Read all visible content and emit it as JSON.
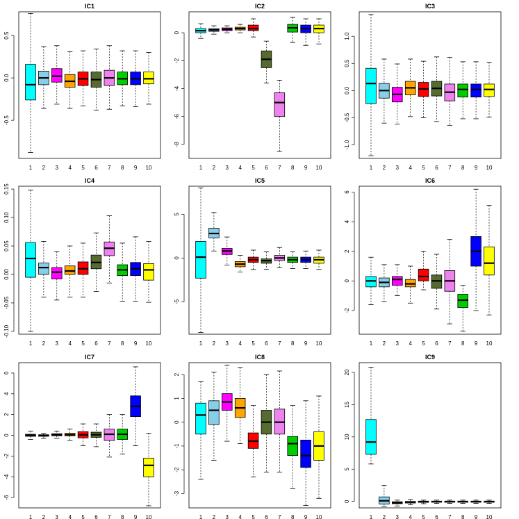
{
  "chart_data": [
    {
      "type": "boxplot",
      "title": "IC1",
      "categories": [
        "1",
        "2",
        "3",
        "4",
        "5",
        "6",
        "7",
        "8",
        "9",
        "10"
      ],
      "colors": [
        "#00FFFF",
        "#87CEEB",
        "#FF00FF",
        "#FFA500",
        "#FF0000",
        "#556B2F",
        "#EE82EE",
        "#00CD00",
        "#0000FF",
        "#FFFF00"
      ],
      "ylim": [
        -0.95,
        0.78
      ],
      "yticks": [
        -0.5,
        0.0,
        0.5
      ],
      "ytick_labels": [
        "-0.5",
        "0.0",
        "0.5"
      ],
      "boxes": [
        {
          "min": -0.88,
          "q1": -0.26,
          "median": -0.08,
          "q3": 0.16,
          "max": 0.76
        },
        {
          "min": -0.36,
          "q1": -0.08,
          "median": 0.0,
          "q3": 0.08,
          "max": 0.37
        },
        {
          "min": -0.31,
          "q1": -0.05,
          "median": 0.02,
          "q3": 0.11,
          "max": 0.38
        },
        {
          "min": -0.36,
          "q1": -0.11,
          "median": -0.04,
          "q3": 0.04,
          "max": 0.31
        },
        {
          "min": -0.33,
          "q1": -0.09,
          "median": -0.01,
          "q3": 0.07,
          "max": 0.32
        },
        {
          "min": -0.38,
          "q1": -0.11,
          "median": -0.02,
          "q3": 0.07,
          "max": 0.34
        },
        {
          "min": -0.37,
          "q1": -0.09,
          "median": 0.0,
          "q3": 0.09,
          "max": 0.38
        },
        {
          "min": -0.33,
          "q1": -0.08,
          "median": -0.01,
          "q3": 0.07,
          "max": 0.32
        },
        {
          "min": -0.34,
          "q1": -0.08,
          "median": -0.01,
          "q3": 0.07,
          "max": 0.32
        },
        {
          "min": -0.31,
          "q1": -0.07,
          "median": -0.01,
          "q3": 0.07,
          "max": 0.3
        }
      ]
    },
    {
      "type": "boxplot",
      "title": "IC2",
      "categories": [
        "1",
        "2",
        "3",
        "4",
        "5",
        "6",
        "7",
        "8",
        "9",
        "10"
      ],
      "colors": [
        "#00FFFF",
        "#87CEEB",
        "#FF00FF",
        "#FFA500",
        "#FF0000",
        "#556B2F",
        "#EE82EE",
        "#00CD00",
        "#0000FF",
        "#FFFF00"
      ],
      "ylim": [
        -9.0,
        1.5
      ],
      "yticks": [
        -8,
        -6,
        -4,
        -2,
        0
      ],
      "ytick_labels": [
        "-8",
        "-6",
        "-4",
        "-2",
        "0"
      ],
      "boxes": [
        {
          "min": -0.4,
          "q1": 0.0,
          "median": 0.15,
          "q3": 0.3,
          "max": 0.65
        },
        {
          "min": -0.1,
          "q1": 0.1,
          "median": 0.2,
          "q3": 0.3,
          "max": 0.5
        },
        {
          "min": 0.0,
          "q1": 0.15,
          "median": 0.25,
          "q3": 0.35,
          "max": 0.5
        },
        {
          "min": 0.0,
          "q1": 0.2,
          "median": 0.3,
          "q3": 0.4,
          "max": 0.6
        },
        {
          "min": -0.3,
          "q1": 0.15,
          "median": 0.3,
          "q3": 0.55,
          "max": 1.0
        },
        {
          "min": -3.6,
          "q1": -2.5,
          "median": -1.9,
          "q3": -1.3,
          "max": -0.6
        },
        {
          "min": -8.5,
          "q1": -6.0,
          "median": -5.0,
          "q3": -4.3,
          "max": -3.4
        },
        {
          "min": -0.7,
          "q1": 0.05,
          "median": 0.35,
          "q3": 0.6,
          "max": 1.1
        },
        {
          "min": -0.9,
          "q1": 0.0,
          "median": 0.3,
          "q3": 0.55,
          "max": 1.0
        },
        {
          "min": -0.8,
          "q1": 0.0,
          "median": 0.3,
          "q3": 0.55,
          "max": 1.0
        }
      ]
    },
    {
      "type": "boxplot",
      "title": "IC3",
      "categories": [
        "1",
        "2",
        "3",
        "4",
        "5",
        "6",
        "7",
        "8",
        "9",
        "10"
      ],
      "colors": [
        "#00FFFF",
        "#87CEEB",
        "#FF00FF",
        "#FFA500",
        "#FF0000",
        "#556B2F",
        "#EE82EE",
        "#00CD00",
        "#0000FF",
        "#FFFF00"
      ],
      "ylim": [
        -1.25,
        1.45
      ],
      "yticks": [
        -1.0,
        -0.5,
        0.0,
        0.5,
        1.0
      ],
      "ytick_labels": [
        "-1.0",
        "-0.5",
        "0.0",
        "0.5",
        "1.0"
      ],
      "boxes": [
        {
          "min": -1.2,
          "q1": -0.24,
          "median": 0.13,
          "q3": 0.41,
          "max": 1.4
        },
        {
          "min": -0.6,
          "q1": -0.14,
          "median": 0.0,
          "q3": 0.13,
          "max": 0.58
        },
        {
          "min": -0.62,
          "q1": -0.21,
          "median": -0.07,
          "q3": 0.06,
          "max": 0.49
        },
        {
          "min": -0.48,
          "q1": -0.08,
          "median": 0.05,
          "q3": 0.17,
          "max": 0.58
        },
        {
          "min": -0.5,
          "q1": -0.11,
          "median": 0.03,
          "q3": 0.15,
          "max": 0.54
        },
        {
          "min": -0.57,
          "q1": -0.1,
          "median": 0.04,
          "q3": 0.17,
          "max": 0.62
        },
        {
          "min": -0.64,
          "q1": -0.19,
          "median": -0.03,
          "q3": 0.12,
          "max": 0.61
        },
        {
          "min": -0.52,
          "q1": -0.12,
          "median": 0.02,
          "q3": 0.12,
          "max": 0.53
        },
        {
          "min": -0.52,
          "q1": -0.12,
          "median": 0.02,
          "q3": 0.12,
          "max": 0.53
        },
        {
          "min": -0.49,
          "q1": -0.11,
          "median": 0.02,
          "q3": 0.12,
          "max": 0.52
        }
      ]
    },
    {
      "type": "boxplot",
      "title": "IC4",
      "categories": [
        "1",
        "2",
        "3",
        "4",
        "5",
        "6",
        "7",
        "8",
        "9",
        "10"
      ],
      "colors": [
        "#00FFFF",
        "#87CEEB",
        "#FF00FF",
        "#FFA500",
        "#FF0000",
        "#556B2F",
        "#EE82EE",
        "#00CD00",
        "#0000FF",
        "#FFFF00"
      ],
      "ylim": [
        -0.105,
        0.155
      ],
      "yticks": [
        -0.1,
        -0.05,
        0.0,
        0.05,
        0.1,
        0.15
      ],
      "ytick_labels": [
        "-0.10",
        "-0.05",
        "0.00",
        "0.05",
        "0.10",
        "0.15"
      ],
      "boxes": [
        {
          "min": -0.1,
          "q1": -0.005,
          "median": 0.028,
          "q3": 0.056,
          "max": 0.148
        },
        {
          "min": -0.04,
          "q1": 0.0,
          "median": 0.012,
          "q3": 0.02,
          "max": 0.058
        },
        {
          "min": -0.045,
          "q1": -0.008,
          "median": 0.004,
          "q3": 0.012,
          "max": 0.04
        },
        {
          "min": -0.04,
          "q1": 0.0,
          "median": 0.006,
          "q3": 0.015,
          "max": 0.05
        },
        {
          "min": -0.04,
          "q1": 0.0,
          "median": 0.01,
          "q3": 0.022,
          "max": 0.055
        },
        {
          "min": -0.03,
          "q1": 0.01,
          "median": 0.021,
          "q3": 0.034,
          "max": 0.073
        },
        {
          "min": -0.015,
          "q1": 0.033,
          "median": 0.046,
          "q3": 0.057,
          "max": 0.103
        },
        {
          "min": -0.047,
          "q1": -0.002,
          "median": 0.008,
          "q3": 0.017,
          "max": 0.055
        },
        {
          "min": -0.047,
          "q1": -0.002,
          "median": 0.01,
          "q3": 0.021,
          "max": 0.066
        },
        {
          "min": -0.049,
          "q1": -0.01,
          "median": 0.008,
          "q3": 0.019,
          "max": 0.058
        }
      ]
    },
    {
      "type": "boxplot",
      "title": "IC5",
      "categories": [
        "1",
        "2",
        "3",
        "4",
        "5",
        "6",
        "7",
        "8",
        "9",
        "10"
      ],
      "colors": [
        "#00FFFF",
        "#87CEEB",
        "#FF00FF",
        "#FFA500",
        "#FF0000",
        "#556B2F",
        "#EE82EE",
        "#00CD00",
        "#0000FF",
        "#FFFF00"
      ],
      "ylim": [
        -8.7,
        8.2
      ],
      "yticks": [
        -5,
        0,
        5
      ],
      "ytick_labels": [
        "-5",
        "0",
        "5"
      ],
      "boxes": [
        {
          "min": -8.5,
          "q1": -2.3,
          "median": 0.1,
          "q3": 1.9,
          "max": 8.0
        },
        {
          "min": 0.8,
          "q1": 2.3,
          "median": 2.8,
          "q3": 3.4,
          "max": 5.2
        },
        {
          "min": -0.8,
          "q1": 0.4,
          "median": 0.8,
          "q3": 1.1,
          "max": 2.4
        },
        {
          "min": -1.6,
          "q1": -1.0,
          "median": -0.7,
          "q3": -0.4,
          "max": 0.3
        },
        {
          "min": -1.3,
          "q1": -0.5,
          "median": -0.2,
          "q3": 0.1,
          "max": 0.9
        },
        {
          "min": -1.3,
          "q1": -0.6,
          "median": -0.3,
          "q3": -0.1,
          "max": 0.7
        },
        {
          "min": -1.1,
          "q1": -0.3,
          "median": 0.0,
          "q3": 0.3,
          "max": 1.2
        },
        {
          "min": -1.2,
          "q1": -0.5,
          "median": -0.2,
          "q3": 0.1,
          "max": 0.7
        },
        {
          "min": -1.2,
          "q1": -0.5,
          "median": -0.2,
          "q3": 0.1,
          "max": 0.8
        },
        {
          "min": -1.3,
          "q1": -0.6,
          "median": -0.2,
          "q3": 0.1,
          "max": 0.9
        }
      ]
    },
    {
      "type": "boxplot",
      "title": "IC6",
      "categories": [
        "1",
        "2",
        "3",
        "4",
        "5",
        "6",
        "7",
        "8",
        "9",
        "10"
      ],
      "colors": [
        "#00FFFF",
        "#87CEEB",
        "#FF00FF",
        "#FFA500",
        "#FF0000",
        "#556B2F",
        "#EE82EE",
        "#00CD00",
        "#0000FF",
        "#FFFF00"
      ],
      "ylim": [
        -3.6,
        6.4
      ],
      "yticks": [
        -2,
        0,
        2,
        4,
        6
      ],
      "ytick_labels": [
        "-2",
        "0",
        "2",
        "4",
        "6"
      ],
      "boxes": [
        {
          "min": -1.6,
          "q1": -0.4,
          "median": 0.0,
          "q3": 0.3,
          "max": 1.6
        },
        {
          "min": -1.4,
          "q1": -0.4,
          "median": -0.1,
          "q3": 0.2,
          "max": 1.1
        },
        {
          "min": -1.0,
          "q1": -0.3,
          "median": 0.1,
          "q3": 0.3,
          "max": 1.1
        },
        {
          "min": -1.5,
          "q1": -0.4,
          "median": -0.2,
          "q3": 0.1,
          "max": 1.0
        },
        {
          "min": -0.6,
          "q1": 0.0,
          "median": 0.3,
          "q3": 0.8,
          "max": 2.0
        },
        {
          "min": -1.9,
          "q1": -0.5,
          "median": 0.0,
          "q3": 0.4,
          "max": 1.8
        },
        {
          "min": -2.9,
          "q1": -0.7,
          "median": 0.0,
          "q3": 0.7,
          "max": 2.8
        },
        {
          "min": -3.4,
          "q1": -1.8,
          "median": -1.3,
          "q3": -0.9,
          "max": -0.3
        },
        {
          "min": -2.0,
          "q1": 1.0,
          "median": 2.0,
          "q3": 3.0,
          "max": 6.2
        },
        {
          "min": -2.3,
          "q1": 0.4,
          "median": 1.2,
          "q3": 2.3,
          "max": 5.1
        }
      ]
    },
    {
      "type": "boxplot",
      "title": "IC7",
      "categories": [
        "1",
        "2",
        "3",
        "4",
        "5",
        "6",
        "7",
        "8",
        "9",
        "10"
      ],
      "colors": [
        "#00FFFF",
        "#87CEEB",
        "#FF00FF",
        "#FFA500",
        "#FF0000",
        "#556B2F",
        "#EE82EE",
        "#00CD00",
        "#0000FF",
        "#FFFF00"
      ],
      "ylim": [
        -7.0,
        7.0
      ],
      "yticks": [
        -6,
        -4,
        -2,
        0,
        2,
        4,
        6
      ],
      "ytick_labels": [
        "-6",
        "-4",
        "-2",
        "0",
        "2",
        "4",
        "6"
      ],
      "boxes": [
        {
          "min": -0.4,
          "q1": -0.1,
          "median": 0.0,
          "q3": 0.1,
          "max": 0.4
        },
        {
          "min": -0.3,
          "q1": -0.1,
          "median": 0.0,
          "q3": 0.05,
          "max": 0.2
        },
        {
          "min": -0.3,
          "q1": -0.05,
          "median": 0.05,
          "q3": 0.15,
          "max": 0.4
        },
        {
          "min": -0.5,
          "q1": -0.05,
          "median": 0.05,
          "q3": 0.2,
          "max": 0.6
        },
        {
          "min": -1.0,
          "q1": -0.25,
          "median": 0.05,
          "q3": 0.35,
          "max": 1.1
        },
        {
          "min": -1.1,
          "q1": -0.2,
          "median": 0.05,
          "q3": 0.3,
          "max": 1.1
        },
        {
          "min": -2.1,
          "q1": -0.5,
          "median": 0.1,
          "q3": 0.6,
          "max": 2.0
        },
        {
          "min": -1.8,
          "q1": -0.4,
          "median": 0.1,
          "q3": 0.6,
          "max": 2.0
        },
        {
          "min": -1.0,
          "q1": 1.8,
          "median": 2.8,
          "q3": 3.8,
          "max": 6.6
        },
        {
          "min": -6.8,
          "q1": -4.0,
          "median": -2.9,
          "q3": -2.2,
          "max": 0.2
        }
      ]
    },
    {
      "type": "boxplot",
      "title": "IC8",
      "categories": [
        "1",
        "2",
        "3",
        "4",
        "5",
        "6",
        "7",
        "8",
        "9",
        "10"
      ],
      "colors": [
        "#00FFFF",
        "#87CEEB",
        "#FF00FF",
        "#FFA500",
        "#FF0000",
        "#556B2F",
        "#EE82EE",
        "#00CD00",
        "#0000FF",
        "#FFFF00"
      ],
      "ylim": [
        -3.6,
        2.5
      ],
      "yticks": [
        -3,
        -2,
        -1,
        0,
        1,
        2
      ],
      "ytick_labels": [
        "-3",
        "-2",
        "-1",
        "0",
        "1",
        "2"
      ],
      "boxes": [
        {
          "min": -2.4,
          "q1": -0.5,
          "median": 0.3,
          "q3": 0.8,
          "max": 1.7
        },
        {
          "min": -1.6,
          "q1": -0.1,
          "median": 0.5,
          "q3": 0.9,
          "max": 2.1
        },
        {
          "min": -0.8,
          "q1": 0.5,
          "median": 0.85,
          "q3": 1.2,
          "max": 2.4
        },
        {
          "min": -0.9,
          "q1": 0.2,
          "median": 0.6,
          "q3": 1.0,
          "max": 2.3
        },
        {
          "min": -2.3,
          "q1": -1.1,
          "median": -0.8,
          "q3": -0.45,
          "max": 0.7
        },
        {
          "min": -2.1,
          "q1": -0.5,
          "median": 0.0,
          "q3": 0.5,
          "max": 2.0
        },
        {
          "min": -2.1,
          "q1": -0.5,
          "median": 0.0,
          "q3": 0.55,
          "max": 2.15
        },
        {
          "min": -2.8,
          "q1": -1.4,
          "median": -0.9,
          "q3": -0.6,
          "max": 0.7
        },
        {
          "min": -3.5,
          "q1": -1.9,
          "median": -1.4,
          "q3": -0.75,
          "max": 0.9
        },
        {
          "min": -3.2,
          "q1": -1.6,
          "median": -1.0,
          "q3": -0.4,
          "max": 1.1
        }
      ]
    },
    {
      "type": "boxplot",
      "title": "IC9",
      "categories": [
        "1",
        "2",
        "3",
        "4",
        "5",
        "6",
        "7",
        "8",
        "9",
        "10"
      ],
      "colors": [
        "#00FFFF",
        "#87CEEB",
        "#FF00FF",
        "#FFA500",
        "#FF0000",
        "#556B2F",
        "#EE82EE",
        "#00CD00",
        "#0000FF",
        "#FFFF00"
      ],
      "ylim": [
        -1.0,
        21.5
      ],
      "yticks": [
        0,
        5,
        10,
        15,
        20
      ],
      "ytick_labels": [
        "0",
        "5",
        "10",
        "15",
        "20"
      ],
      "boxes": [
        {
          "min": 5.8,
          "q1": 7.3,
          "median": 9.2,
          "q3": 12.7,
          "max": 20.8
        },
        {
          "min": -0.8,
          "q1": -0.4,
          "median": 0.1,
          "q3": 0.7,
          "max": 2.5
        },
        {
          "min": -0.7,
          "q1": -0.35,
          "median": -0.2,
          "q3": -0.05,
          "max": 0.2
        },
        {
          "min": -0.5,
          "q1": -0.25,
          "median": -0.1,
          "q3": 0.0,
          "max": 0.3
        },
        {
          "min": -0.35,
          "q1": -0.15,
          "median": -0.05,
          "q3": 0.05,
          "max": 0.2
        },
        {
          "min": -0.3,
          "q1": -0.1,
          "median": -0.05,
          "q3": 0.05,
          "max": 0.2
        },
        {
          "min": -0.3,
          "q1": -0.1,
          "median": -0.05,
          "q3": 0.05,
          "max": 0.2
        },
        {
          "min": -0.3,
          "q1": -0.1,
          "median": -0.05,
          "q3": 0.05,
          "max": 0.2
        },
        {
          "min": -0.3,
          "q1": -0.1,
          "median": -0.05,
          "q3": 0.05,
          "max": 0.2
        },
        {
          "min": -0.3,
          "q1": -0.1,
          "median": -0.05,
          "q3": 0.05,
          "max": 0.2
        }
      ]
    }
  ]
}
